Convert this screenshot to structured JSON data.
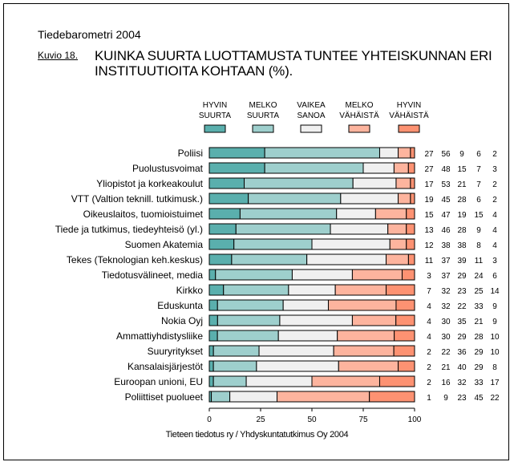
{
  "header": {
    "supertitle": "Tiedebarometri 2004",
    "figure_label": "Kuvio 18.",
    "title": "KUINKA SUURTA LUOTTAMUSTA TUNTEE YHTEISKUNNAN ERI INSTITUUTIOITA KOHTAAN (%)."
  },
  "source": "Tieteen tiedotus ry / Yhdyskuntatutkimus Oy 2004",
  "colors": {
    "hyvin_suurta": "#5aafad",
    "melko_suurta": "#9ecfcd",
    "vaikea_sanoa": "#f0f0f0",
    "melko_vahaista": "#fdb49e",
    "hyvin_vahaista": "#fd9272"
  },
  "chart_data": {
    "type": "bar",
    "orientation": "horizontal",
    "stacked": true,
    "title": "KUINKA SUURTA LUOTTAMUSTA TUNTEE YHTEISKUNNAN ERI INSTITUUTIOITA KOHTAAN (%).",
    "xlabel": "",
    "ylabel": "",
    "xlim": [
      0,
      100
    ],
    "xticks": [
      0,
      25,
      50,
      75,
      100
    ],
    "grid": false,
    "legend_position": "top",
    "categories": [
      "Poliisi",
      "Puolustusvoimat",
      "Yliopistot ja korkeakoulut",
      "VTT (Valtion teknill. tutkimusk.)",
      "Oikeuslaitos, tuomioistuimet",
      "Tiede ja tutkimus, tiedeyhteisö (yl.)",
      "Suomen Akatemia",
      "Tekes (Teknologian keh.keskus)",
      "Tiedotusvälineet, media",
      "Kirkko",
      "Eduskunta",
      "Nokia Oyj",
      "Ammattiyhdistysliike",
      "Suuryritykset",
      "Kansalaisjärjestöt",
      "Euroopan unioni, EU",
      "Poliittiset puolueet"
    ],
    "series": [
      {
        "name": "HYVIN SUURTA",
        "legend_lines": [
          "HYVIN",
          "SUURTA"
        ],
        "color_key": "hyvin_suurta",
        "values": [
          27,
          27,
          17,
          19,
          15,
          13,
          12,
          11,
          3,
          7,
          4,
          4,
          4,
          2,
          2,
          2,
          1
        ]
      },
      {
        "name": "MELKO SUURTA",
        "legend_lines": [
          "MELKO",
          "SUURTA"
        ],
        "color_key": "melko_suurta",
        "values": [
          56,
          48,
          53,
          45,
          47,
          46,
          38,
          37,
          37,
          32,
          32,
          30,
          30,
          22,
          21,
          16,
          9
        ]
      },
      {
        "name": "VAIKEA SANOA",
        "legend_lines": [
          "VAIKEA",
          "SANOA"
        ],
        "color_key": "vaikea_sanoa",
        "values": [
          9,
          15,
          21,
          28,
          19,
          28,
          38,
          39,
          29,
          23,
          22,
          35,
          29,
          36,
          40,
          32,
          23
        ]
      },
      {
        "name": "MELKO VÄHÄISTÄ",
        "legend_lines": [
          "MELKO",
          "VÄHÄISTÄ"
        ],
        "color_key": "melko_vahaista",
        "values": [
          6,
          7,
          7,
          6,
          15,
          9,
          8,
          11,
          24,
          25,
          33,
          21,
          28,
          29,
          29,
          33,
          45
        ]
      },
      {
        "name": "HYVIN VÄHÄISTÄ",
        "legend_lines": [
          "HYVIN",
          "VÄHÄISTÄ"
        ],
        "color_key": "hyvin_vahaista",
        "values": [
          2,
          3,
          2,
          2,
          4,
          4,
          4,
          3,
          6,
          14,
          9,
          9,
          10,
          10,
          8,
          17,
          22
        ]
      }
    ]
  }
}
